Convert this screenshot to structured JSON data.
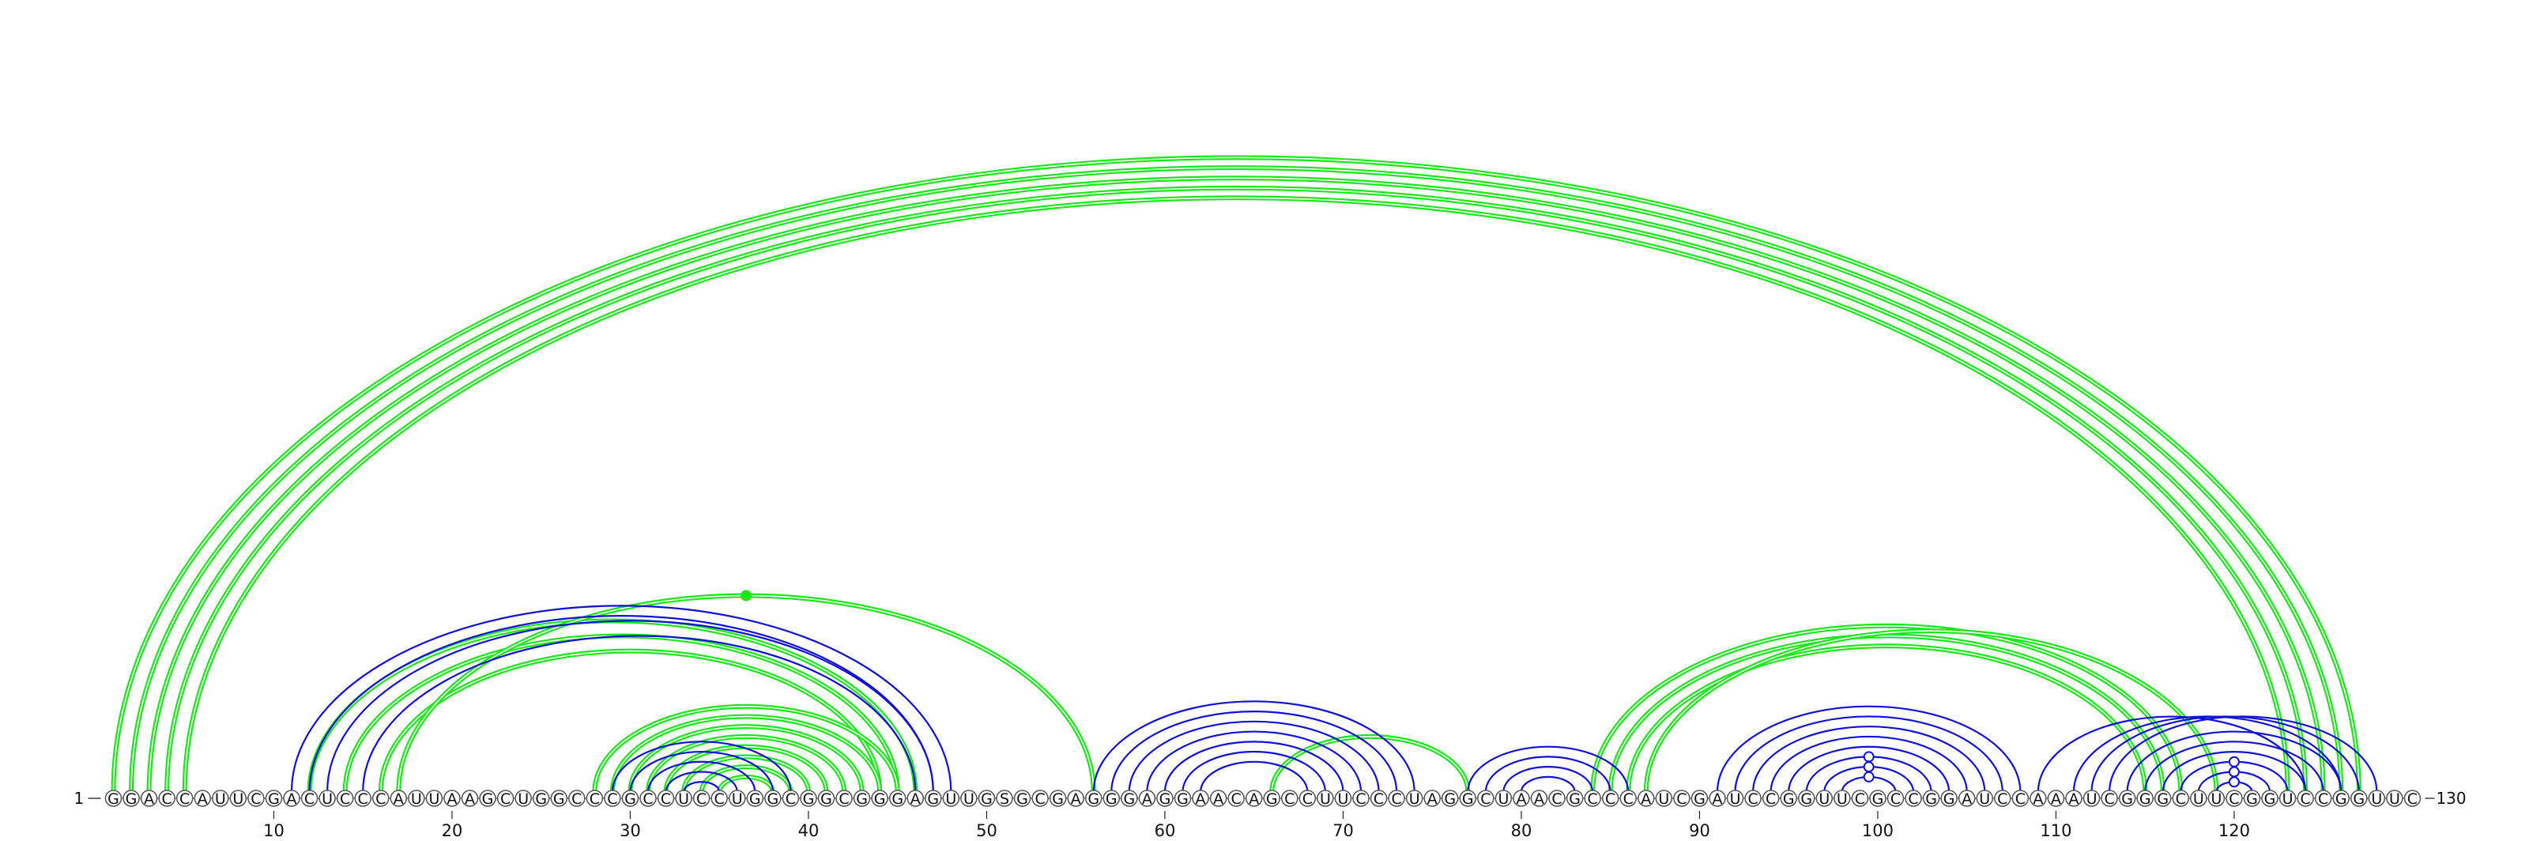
{
  "sequence": "GGACCAUUCGACUCCCAUUAAGCUGGCCCGCCUCCUGGCGGCGGGAGUUGSGCGAGGGAGGAACAGCCUUCCCUAGGCUAACGCCCAUCGAUCCGGUUCGCCGGAUCCAAAUCGGGCUUCGGUCCGGUUC",
  "start_label": "1",
  "end_label": "130",
  "ticks": [
    10,
    20,
    30,
    40,
    50,
    60,
    70,
    80,
    90,
    100,
    110,
    120
  ],
  "colors": {
    "upper": "#18e818",
    "lower": "#1010d8",
    "circle_stroke": "#555555"
  },
  "chart_data": {
    "type": "arc",
    "length": 130,
    "upper_arcs": [
      [
        1,
        127
      ],
      [
        2,
        126
      ],
      [
        3,
        125
      ],
      [
        4,
        124
      ],
      [
        5,
        123
      ],
      [
        12,
        46
      ],
      [
        14,
        45
      ],
      [
        16,
        44
      ],
      [
        17,
        56
      ],
      [
        28,
        45
      ],
      [
        29,
        44
      ],
      [
        30,
        43
      ],
      [
        31,
        42
      ],
      [
        32,
        41
      ],
      [
        33,
        40
      ],
      [
        34,
        39
      ],
      [
        35,
        38
      ],
      [
        66,
        77
      ],
      [
        84,
        117
      ],
      [
        85,
        116
      ],
      [
        86,
        115
      ],
      [
        87,
        119
      ]
    ],
    "lower_arcs": [
      [
        11,
        48
      ],
      [
        12,
        47
      ],
      [
        13,
        47
      ],
      [
        15,
        46
      ],
      [
        29,
        39
      ],
      [
        30,
        38
      ],
      [
        31,
        37
      ],
      [
        32,
        36
      ],
      [
        33,
        35
      ],
      [
        56,
        74
      ],
      [
        57,
        73
      ],
      [
        58,
        72
      ],
      [
        59,
        71
      ],
      [
        60,
        70
      ],
      [
        61,
        69
      ],
      [
        62,
        68
      ],
      [
        77,
        86
      ],
      [
        78,
        85
      ],
      [
        79,
        84
      ],
      [
        80,
        83
      ],
      [
        91,
        108
      ],
      [
        92,
        107
      ],
      [
        93,
        106
      ],
      [
        94,
        105
      ],
      [
        95,
        104
      ],
      [
        96,
        103
      ],
      [
        97,
        102
      ],
      [
        98,
        101
      ],
      [
        109,
        124
      ],
      [
        111,
        126
      ],
      [
        112,
        127
      ],
      [
        113,
        128
      ],
      [
        114,
        126
      ],
      [
        115,
        125
      ],
      [
        116,
        124
      ],
      [
        117,
        123
      ],
      [
        118,
        122
      ],
      [
        119,
        121
      ]
    ],
    "upper_markers": [
      35
    ],
    "lower_markers": [
      99,
      120
    ]
  }
}
